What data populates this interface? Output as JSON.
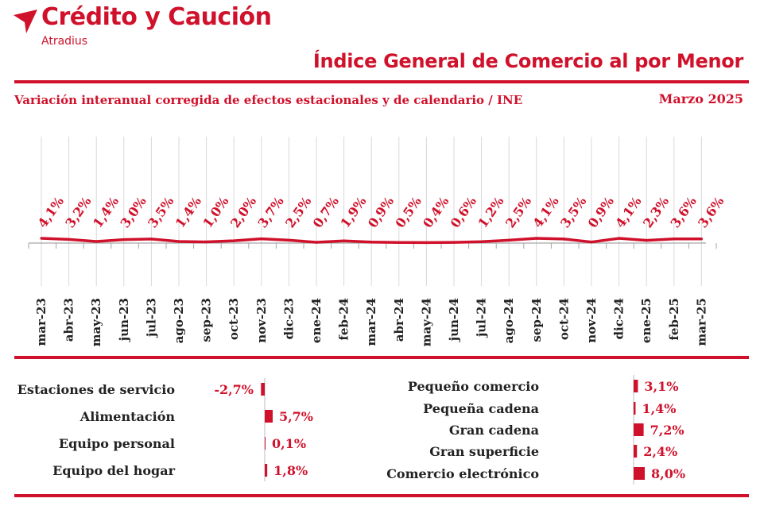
{
  "brand": {
    "name": "Crédito y Caución",
    "sub": "Atradius",
    "color": "#d0112b"
  },
  "header": {
    "title": "Índice General de Comercio al por Menor",
    "subtitle": "Variación interanual corregida de efectos estacionales y de calendario / INE",
    "date": "Marzo  2025"
  },
  "chart_data": [
    {
      "type": "line",
      "categories": [
        "mar-23",
        "abr-23",
        "may-23",
        "jun-23",
        "jul-23",
        "ago-23",
        "sep-23",
        "oct-23",
        "nov-23",
        "dic-23",
        "ene-24",
        "feb-24",
        "mar-24",
        "abr-24",
        "may-24",
        "jun-24",
        "jul-24",
        "ago-24",
        "sep-24",
        "oct-24",
        "nov-24",
        "dic-24",
        "ene-25",
        "feb-25",
        "mar-25"
      ],
      "values": [
        4.1,
        3.2,
        1.4,
        3.0,
        3.5,
        1.4,
        1.0,
        2.0,
        3.7,
        2.5,
        0.7,
        1.9,
        0.9,
        0.5,
        0.4,
        0.6,
        1.2,
        2.5,
        4.1,
        3.5,
        0.9,
        4.1,
        2.3,
        3.6,
        3.6
      ],
      "labels": [
        "4,1%",
        "3,2%",
        "1,4%",
        "3,0%",
        "3,5%",
        "1,4%",
        "1,0%",
        "2,0%",
        "3,7%",
        "2,5%",
        "0,7%",
        "1,9%",
        "0,9%",
        "0,5%",
        "0,4%",
        "0,6%",
        "1,2%",
        "2,5%",
        "4,1%",
        "3,5%",
        "0,9%",
        "4,1%",
        "2,3%",
        "3,6%",
        "3,6%"
      ],
      "line_color": "#d0112b",
      "grid": true
    },
    {
      "type": "bar",
      "orientation": "horizontal",
      "categories": [
        "Estaciones de servicio",
        "Alimentación",
        "Equipo personal",
        "Equipo del hogar"
      ],
      "values": [
        -2.7,
        5.7,
        0.1,
        1.8
      ],
      "labels": [
        "-2,7%",
        "5,7%",
        "0,1%",
        "1,8%"
      ]
    },
    {
      "type": "bar",
      "orientation": "horizontal",
      "categories": [
        "Pequeño comercio",
        "Pequeña cadena",
        "Gran cadena",
        "Gran superficie",
        "Comercio electrónico"
      ],
      "values": [
        3.1,
        1.4,
        7.2,
        2.4,
        8.0
      ],
      "labels": [
        "3,1%",
        "1,4%",
        "7,2%",
        "2,4%",
        "8,0%"
      ]
    }
  ]
}
